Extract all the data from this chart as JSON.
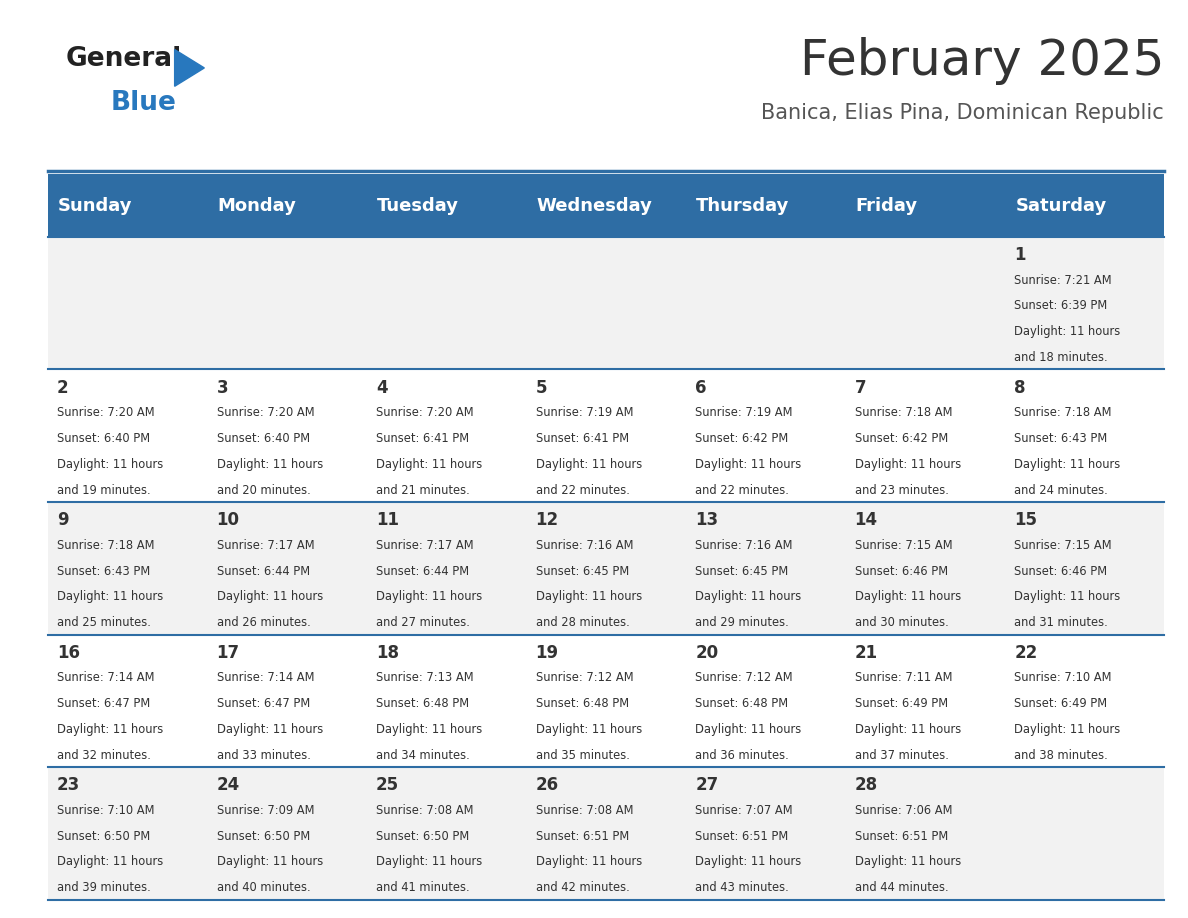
{
  "title": "February 2025",
  "subtitle": "Banica, Elias Pina, Dominican Republic",
  "days_of_week": [
    "Sunday",
    "Monday",
    "Tuesday",
    "Wednesday",
    "Thursday",
    "Friday",
    "Saturday"
  ],
  "header_bg": "#2E6DA4",
  "header_text_color": "#FFFFFF",
  "cell_bg_light": "#F2F2F2",
  "cell_bg_white": "#FFFFFF",
  "border_color": "#2E6DA4",
  "title_color": "#333333",
  "subtitle_color": "#555555",
  "day_number_color": "#333333",
  "cell_text_color": "#333333",
  "logo_general_color": "#222222",
  "logo_blue_color": "#2878BE",
  "calendar_data": [
    [
      null,
      null,
      null,
      null,
      null,
      null,
      {
        "day": 1,
        "sunrise": "7:21 AM",
        "sunset": "6:39 PM",
        "daylight_hours": 11,
        "daylight_minutes": 18
      }
    ],
    [
      {
        "day": 2,
        "sunrise": "7:20 AM",
        "sunset": "6:40 PM",
        "daylight_hours": 11,
        "daylight_minutes": 19
      },
      {
        "day": 3,
        "sunrise": "7:20 AM",
        "sunset": "6:40 PM",
        "daylight_hours": 11,
        "daylight_minutes": 20
      },
      {
        "day": 4,
        "sunrise": "7:20 AM",
        "sunset": "6:41 PM",
        "daylight_hours": 11,
        "daylight_minutes": 21
      },
      {
        "day": 5,
        "sunrise": "7:19 AM",
        "sunset": "6:41 PM",
        "daylight_hours": 11,
        "daylight_minutes": 22
      },
      {
        "day": 6,
        "sunrise": "7:19 AM",
        "sunset": "6:42 PM",
        "daylight_hours": 11,
        "daylight_minutes": 22
      },
      {
        "day": 7,
        "sunrise": "7:18 AM",
        "sunset": "6:42 PM",
        "daylight_hours": 11,
        "daylight_minutes": 23
      },
      {
        "day": 8,
        "sunrise": "7:18 AM",
        "sunset": "6:43 PM",
        "daylight_hours": 11,
        "daylight_minutes": 24
      }
    ],
    [
      {
        "day": 9,
        "sunrise": "7:18 AM",
        "sunset": "6:43 PM",
        "daylight_hours": 11,
        "daylight_minutes": 25
      },
      {
        "day": 10,
        "sunrise": "7:17 AM",
        "sunset": "6:44 PM",
        "daylight_hours": 11,
        "daylight_minutes": 26
      },
      {
        "day": 11,
        "sunrise": "7:17 AM",
        "sunset": "6:44 PM",
        "daylight_hours": 11,
        "daylight_minutes": 27
      },
      {
        "day": 12,
        "sunrise": "7:16 AM",
        "sunset": "6:45 PM",
        "daylight_hours": 11,
        "daylight_minutes": 28
      },
      {
        "day": 13,
        "sunrise": "7:16 AM",
        "sunset": "6:45 PM",
        "daylight_hours": 11,
        "daylight_minutes": 29
      },
      {
        "day": 14,
        "sunrise": "7:15 AM",
        "sunset": "6:46 PM",
        "daylight_hours": 11,
        "daylight_minutes": 30
      },
      {
        "day": 15,
        "sunrise": "7:15 AM",
        "sunset": "6:46 PM",
        "daylight_hours": 11,
        "daylight_minutes": 31
      }
    ],
    [
      {
        "day": 16,
        "sunrise": "7:14 AM",
        "sunset": "6:47 PM",
        "daylight_hours": 11,
        "daylight_minutes": 32
      },
      {
        "day": 17,
        "sunrise": "7:14 AM",
        "sunset": "6:47 PM",
        "daylight_hours": 11,
        "daylight_minutes": 33
      },
      {
        "day": 18,
        "sunrise": "7:13 AM",
        "sunset": "6:48 PM",
        "daylight_hours": 11,
        "daylight_minutes": 34
      },
      {
        "day": 19,
        "sunrise": "7:12 AM",
        "sunset": "6:48 PM",
        "daylight_hours": 11,
        "daylight_minutes": 35
      },
      {
        "day": 20,
        "sunrise": "7:12 AM",
        "sunset": "6:48 PM",
        "daylight_hours": 11,
        "daylight_minutes": 36
      },
      {
        "day": 21,
        "sunrise": "7:11 AM",
        "sunset": "6:49 PM",
        "daylight_hours": 11,
        "daylight_minutes": 37
      },
      {
        "day": 22,
        "sunrise": "7:10 AM",
        "sunset": "6:49 PM",
        "daylight_hours": 11,
        "daylight_minutes": 38
      }
    ],
    [
      {
        "day": 23,
        "sunrise": "7:10 AM",
        "sunset": "6:50 PM",
        "daylight_hours": 11,
        "daylight_minutes": 39
      },
      {
        "day": 24,
        "sunrise": "7:09 AM",
        "sunset": "6:50 PM",
        "daylight_hours": 11,
        "daylight_minutes": 40
      },
      {
        "day": 25,
        "sunrise": "7:08 AM",
        "sunset": "6:50 PM",
        "daylight_hours": 11,
        "daylight_minutes": 41
      },
      {
        "day": 26,
        "sunrise": "7:08 AM",
        "sunset": "6:51 PM",
        "daylight_hours": 11,
        "daylight_minutes": 42
      },
      {
        "day": 27,
        "sunrise": "7:07 AM",
        "sunset": "6:51 PM",
        "daylight_hours": 11,
        "daylight_minutes": 43
      },
      {
        "day": 28,
        "sunrise": "7:06 AM",
        "sunset": "6:51 PM",
        "daylight_hours": 11,
        "daylight_minutes": 44
      },
      null
    ]
  ]
}
